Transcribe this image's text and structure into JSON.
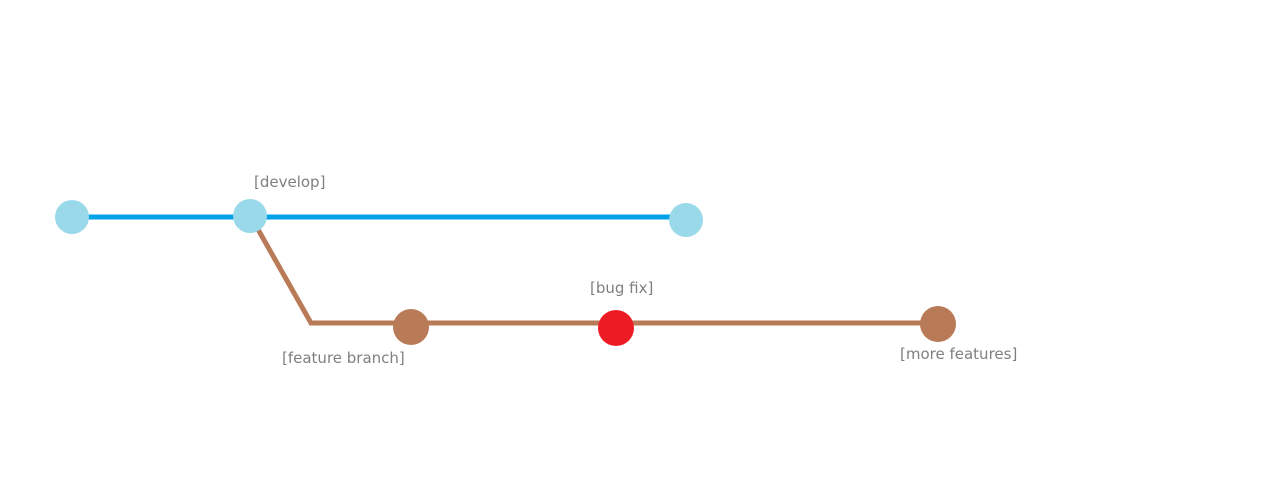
{
  "colors": {
    "develop_line": "#00A2E8",
    "develop_node": "#99D9EA",
    "feature_line": "#B97A57",
    "feature_node": "#B97A57",
    "bugfix_node": "#ED1C24",
    "label_text": "#7F7F7F"
  },
  "labels": {
    "develop": "[develop]",
    "feature_branch": "[feature branch]",
    "bug_fix": "[bug fix]",
    "more_features": "[more features]"
  }
}
